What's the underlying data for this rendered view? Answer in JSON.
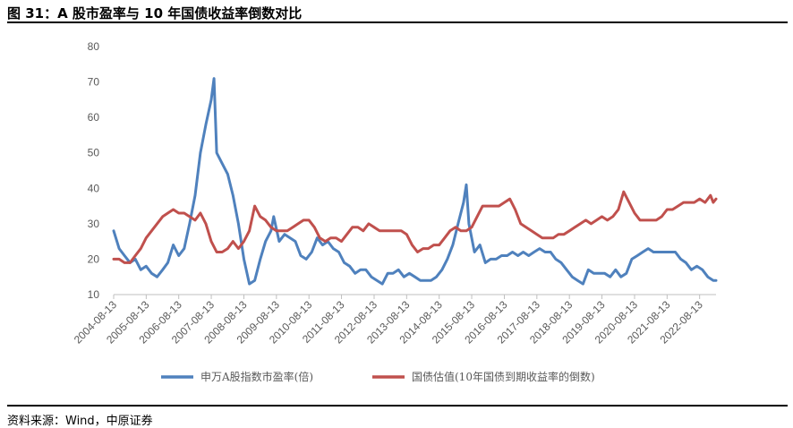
{
  "header": {
    "title": "图 31：A 股市盈率与 10 年国债收益率倒数对比"
  },
  "footer": {
    "source": "资料来源：Wind，中原证券"
  },
  "chart_data": {
    "type": "line",
    "ylim": [
      10,
      80
    ],
    "yticks": [
      10,
      20,
      30,
      40,
      50,
      60,
      70,
      80
    ],
    "xlim": [
      "2004-08-13",
      "2023-02-13"
    ],
    "xtick_labels": [
      "2004-08-13",
      "2005-08-13",
      "2006-08-13",
      "2007-08-13",
      "2008-08-13",
      "2009-08-13",
      "2010-08-13",
      "2011-08-13",
      "2012-08-13",
      "2013-08-13",
      "2014-08-13",
      "2015-08-13",
      "2016-08-13",
      "2017-08-13",
      "2018-08-13",
      "2019-08-13",
      "2020-08-13",
      "2021-08-13",
      "2022-08-13"
    ],
    "grid": false,
    "legend_position": "bottom",
    "series": [
      {
        "name": "申万A股指数市盈率(倍)",
        "color": "#4F81BD",
        "points": [
          [
            "2004-08-13",
            28
          ],
          [
            "2004-10-13",
            23
          ],
          [
            "2004-12-13",
            21
          ],
          [
            "2005-02-13",
            19
          ],
          [
            "2005-04-13",
            20
          ],
          [
            "2005-06-13",
            17
          ],
          [
            "2005-08-13",
            18
          ],
          [
            "2005-10-13",
            16
          ],
          [
            "2005-12-13",
            15
          ],
          [
            "2006-02-13",
            17
          ],
          [
            "2006-04-13",
            19
          ],
          [
            "2006-06-13",
            24
          ],
          [
            "2006-08-13",
            21
          ],
          [
            "2006-10-13",
            23
          ],
          [
            "2006-12-13",
            30
          ],
          [
            "2007-02-13",
            38
          ],
          [
            "2007-04-13",
            50
          ],
          [
            "2007-06-13",
            58
          ],
          [
            "2007-08-13",
            65
          ],
          [
            "2007-09-13",
            71
          ],
          [
            "2007-10-13",
            50
          ],
          [
            "2007-12-13",
            47
          ],
          [
            "2008-02-13",
            44
          ],
          [
            "2008-04-13",
            38
          ],
          [
            "2008-06-13",
            30
          ],
          [
            "2008-08-13",
            20
          ],
          [
            "2008-10-13",
            13
          ],
          [
            "2008-12-13",
            14
          ],
          [
            "2009-02-13",
            20
          ],
          [
            "2009-04-13",
            25
          ],
          [
            "2009-06-13",
            28
          ],
          [
            "2009-07-13",
            32
          ],
          [
            "2009-09-13",
            25
          ],
          [
            "2009-11-13",
            27
          ],
          [
            "2010-01-13",
            26
          ],
          [
            "2010-03-13",
            25
          ],
          [
            "2010-05-13",
            21
          ],
          [
            "2010-07-13",
            20
          ],
          [
            "2010-09-13",
            22
          ],
          [
            "2010-11-13",
            26
          ],
          [
            "2011-01-13",
            24
          ],
          [
            "2011-03-13",
            25
          ],
          [
            "2011-05-13",
            23
          ],
          [
            "2011-07-13",
            22
          ],
          [
            "2011-09-13",
            19
          ],
          [
            "2011-11-13",
            18
          ],
          [
            "2012-01-13",
            16
          ],
          [
            "2012-03-13",
            17
          ],
          [
            "2012-05-13",
            17
          ],
          [
            "2012-07-13",
            15
          ],
          [
            "2012-09-13",
            14
          ],
          [
            "2012-11-13",
            13
          ],
          [
            "2013-01-13",
            16
          ],
          [
            "2013-03-13",
            16
          ],
          [
            "2013-05-13",
            17
          ],
          [
            "2013-07-13",
            15
          ],
          [
            "2013-09-13",
            16
          ],
          [
            "2013-11-13",
            15
          ],
          [
            "2014-01-13",
            14
          ],
          [
            "2014-03-13",
            14
          ],
          [
            "2014-05-13",
            14
          ],
          [
            "2014-07-13",
            15
          ],
          [
            "2014-09-13",
            17
          ],
          [
            "2014-11-13",
            20
          ],
          [
            "2015-01-13",
            24
          ],
          [
            "2015-03-13",
            30
          ],
          [
            "2015-05-13",
            36
          ],
          [
            "2015-06-13",
            41
          ],
          [
            "2015-07-13",
            30
          ],
          [
            "2015-09-13",
            22
          ],
          [
            "2015-11-13",
            24
          ],
          [
            "2016-01-13",
            19
          ],
          [
            "2016-03-13",
            20
          ],
          [
            "2016-05-13",
            20
          ],
          [
            "2016-07-13",
            21
          ],
          [
            "2016-09-13",
            21
          ],
          [
            "2016-11-13",
            22
          ],
          [
            "2017-01-13",
            21
          ],
          [
            "2017-03-13",
            22
          ],
          [
            "2017-05-13",
            21
          ],
          [
            "2017-07-13",
            22
          ],
          [
            "2017-09-13",
            23
          ],
          [
            "2017-11-13",
            22
          ],
          [
            "2018-01-13",
            22
          ],
          [
            "2018-03-13",
            20
          ],
          [
            "2018-05-13",
            19
          ],
          [
            "2018-07-13",
            17
          ],
          [
            "2018-09-13",
            15
          ],
          [
            "2018-11-13",
            14
          ],
          [
            "2019-01-13",
            13
          ],
          [
            "2019-03-13",
            17
          ],
          [
            "2019-05-13",
            16
          ],
          [
            "2019-07-13",
            16
          ],
          [
            "2019-09-13",
            16
          ],
          [
            "2019-11-13",
            15
          ],
          [
            "2020-01-13",
            17
          ],
          [
            "2020-03-13",
            15
          ],
          [
            "2020-05-13",
            16
          ],
          [
            "2020-07-13",
            20
          ],
          [
            "2020-09-13",
            21
          ],
          [
            "2020-11-13",
            22
          ],
          [
            "2021-01-13",
            23
          ],
          [
            "2021-03-13",
            22
          ],
          [
            "2021-05-13",
            22
          ],
          [
            "2021-07-13",
            22
          ],
          [
            "2021-09-13",
            22
          ],
          [
            "2021-11-13",
            22
          ],
          [
            "2022-01-13",
            20
          ],
          [
            "2022-03-13",
            19
          ],
          [
            "2022-05-13",
            17
          ],
          [
            "2022-07-13",
            18
          ],
          [
            "2022-09-13",
            17
          ],
          [
            "2022-11-13",
            15
          ],
          [
            "2023-01-13",
            14
          ],
          [
            "2023-02-13",
            14
          ]
        ]
      },
      {
        "name": "国债估值(10年国债到期收益率的倒数)",
        "color": "#C0504D",
        "points": [
          [
            "2004-08-13",
            20
          ],
          [
            "2004-10-13",
            20
          ],
          [
            "2004-12-13",
            19
          ],
          [
            "2005-02-13",
            19
          ],
          [
            "2005-04-13",
            21
          ],
          [
            "2005-06-13",
            23
          ],
          [
            "2005-08-13",
            26
          ],
          [
            "2005-10-13",
            28
          ],
          [
            "2005-12-13",
            30
          ],
          [
            "2006-02-13",
            32
          ],
          [
            "2006-04-13",
            33
          ],
          [
            "2006-06-13",
            34
          ],
          [
            "2006-08-13",
            33
          ],
          [
            "2006-10-13",
            33
          ],
          [
            "2006-12-13",
            32
          ],
          [
            "2007-02-13",
            31
          ],
          [
            "2007-04-13",
            33
          ],
          [
            "2007-06-13",
            30
          ],
          [
            "2007-08-13",
            25
          ],
          [
            "2007-10-13",
            22
          ],
          [
            "2007-12-13",
            22
          ],
          [
            "2008-02-13",
            23
          ],
          [
            "2008-04-13",
            25
          ],
          [
            "2008-06-13",
            23
          ],
          [
            "2008-08-13",
            25
          ],
          [
            "2008-10-13",
            28
          ],
          [
            "2008-12-13",
            35
          ],
          [
            "2009-02-13",
            32
          ],
          [
            "2009-04-13",
            31
          ],
          [
            "2009-06-13",
            29
          ],
          [
            "2009-08-13",
            28
          ],
          [
            "2009-10-13",
            28
          ],
          [
            "2009-12-13",
            28
          ],
          [
            "2010-02-13",
            29
          ],
          [
            "2010-04-13",
            30
          ],
          [
            "2010-06-13",
            31
          ],
          [
            "2010-08-13",
            31
          ],
          [
            "2010-10-13",
            29
          ],
          [
            "2010-12-13",
            26
          ],
          [
            "2011-02-13",
            25
          ],
          [
            "2011-04-13",
            26
          ],
          [
            "2011-06-13",
            26
          ],
          [
            "2011-08-13",
            25
          ],
          [
            "2011-10-13",
            27
          ],
          [
            "2011-12-13",
            29
          ],
          [
            "2012-02-13",
            29
          ],
          [
            "2012-04-13",
            28
          ],
          [
            "2012-06-13",
            30
          ],
          [
            "2012-08-13",
            29
          ],
          [
            "2012-10-13",
            28
          ],
          [
            "2012-12-13",
            28
          ],
          [
            "2013-02-13",
            28
          ],
          [
            "2013-04-13",
            28
          ],
          [
            "2013-06-13",
            28
          ],
          [
            "2013-08-13",
            27
          ],
          [
            "2013-10-13",
            24
          ],
          [
            "2013-12-13",
            22
          ],
          [
            "2014-02-13",
            23
          ],
          [
            "2014-04-13",
            23
          ],
          [
            "2014-06-13",
            24
          ],
          [
            "2014-08-13",
            24
          ],
          [
            "2014-10-13",
            26
          ],
          [
            "2014-12-13",
            28
          ],
          [
            "2015-02-13",
            29
          ],
          [
            "2015-04-13",
            28
          ],
          [
            "2015-06-13",
            28
          ],
          [
            "2015-08-13",
            29
          ],
          [
            "2015-10-13",
            32
          ],
          [
            "2015-12-13",
            35
          ],
          [
            "2016-02-13",
            35
          ],
          [
            "2016-04-13",
            35
          ],
          [
            "2016-06-13",
            35
          ],
          [
            "2016-08-13",
            36
          ],
          [
            "2016-10-13",
            37
          ],
          [
            "2016-12-13",
            34
          ],
          [
            "2017-02-13",
            30
          ],
          [
            "2017-04-13",
            29
          ],
          [
            "2017-06-13",
            28
          ],
          [
            "2017-08-13",
            27
          ],
          [
            "2017-10-13",
            26
          ],
          [
            "2017-12-13",
            26
          ],
          [
            "2018-02-13",
            26
          ],
          [
            "2018-04-13",
            27
          ],
          [
            "2018-06-13",
            27
          ],
          [
            "2018-08-13",
            28
          ],
          [
            "2018-10-13",
            29
          ],
          [
            "2018-12-13",
            30
          ],
          [
            "2019-02-13",
            31
          ],
          [
            "2019-04-13",
            30
          ],
          [
            "2019-06-13",
            31
          ],
          [
            "2019-08-13",
            32
          ],
          [
            "2019-10-13",
            31
          ],
          [
            "2019-12-13",
            32
          ],
          [
            "2020-02-13",
            34
          ],
          [
            "2020-04-13",
            39
          ],
          [
            "2020-06-13",
            36
          ],
          [
            "2020-08-13",
            33
          ],
          [
            "2020-10-13",
            31
          ],
          [
            "2020-12-13",
            31
          ],
          [
            "2021-02-13",
            31
          ],
          [
            "2021-04-13",
            31
          ],
          [
            "2021-06-13",
            32
          ],
          [
            "2021-08-13",
            34
          ],
          [
            "2021-10-13",
            34
          ],
          [
            "2021-12-13",
            35
          ],
          [
            "2022-02-13",
            36
          ],
          [
            "2022-04-13",
            36
          ],
          [
            "2022-06-13",
            36
          ],
          [
            "2022-08-13",
            37
          ],
          [
            "2022-10-13",
            36
          ],
          [
            "2022-12-13",
            38
          ],
          [
            "2023-01-13",
            36
          ],
          [
            "2023-02-13",
            37
          ]
        ]
      }
    ]
  }
}
